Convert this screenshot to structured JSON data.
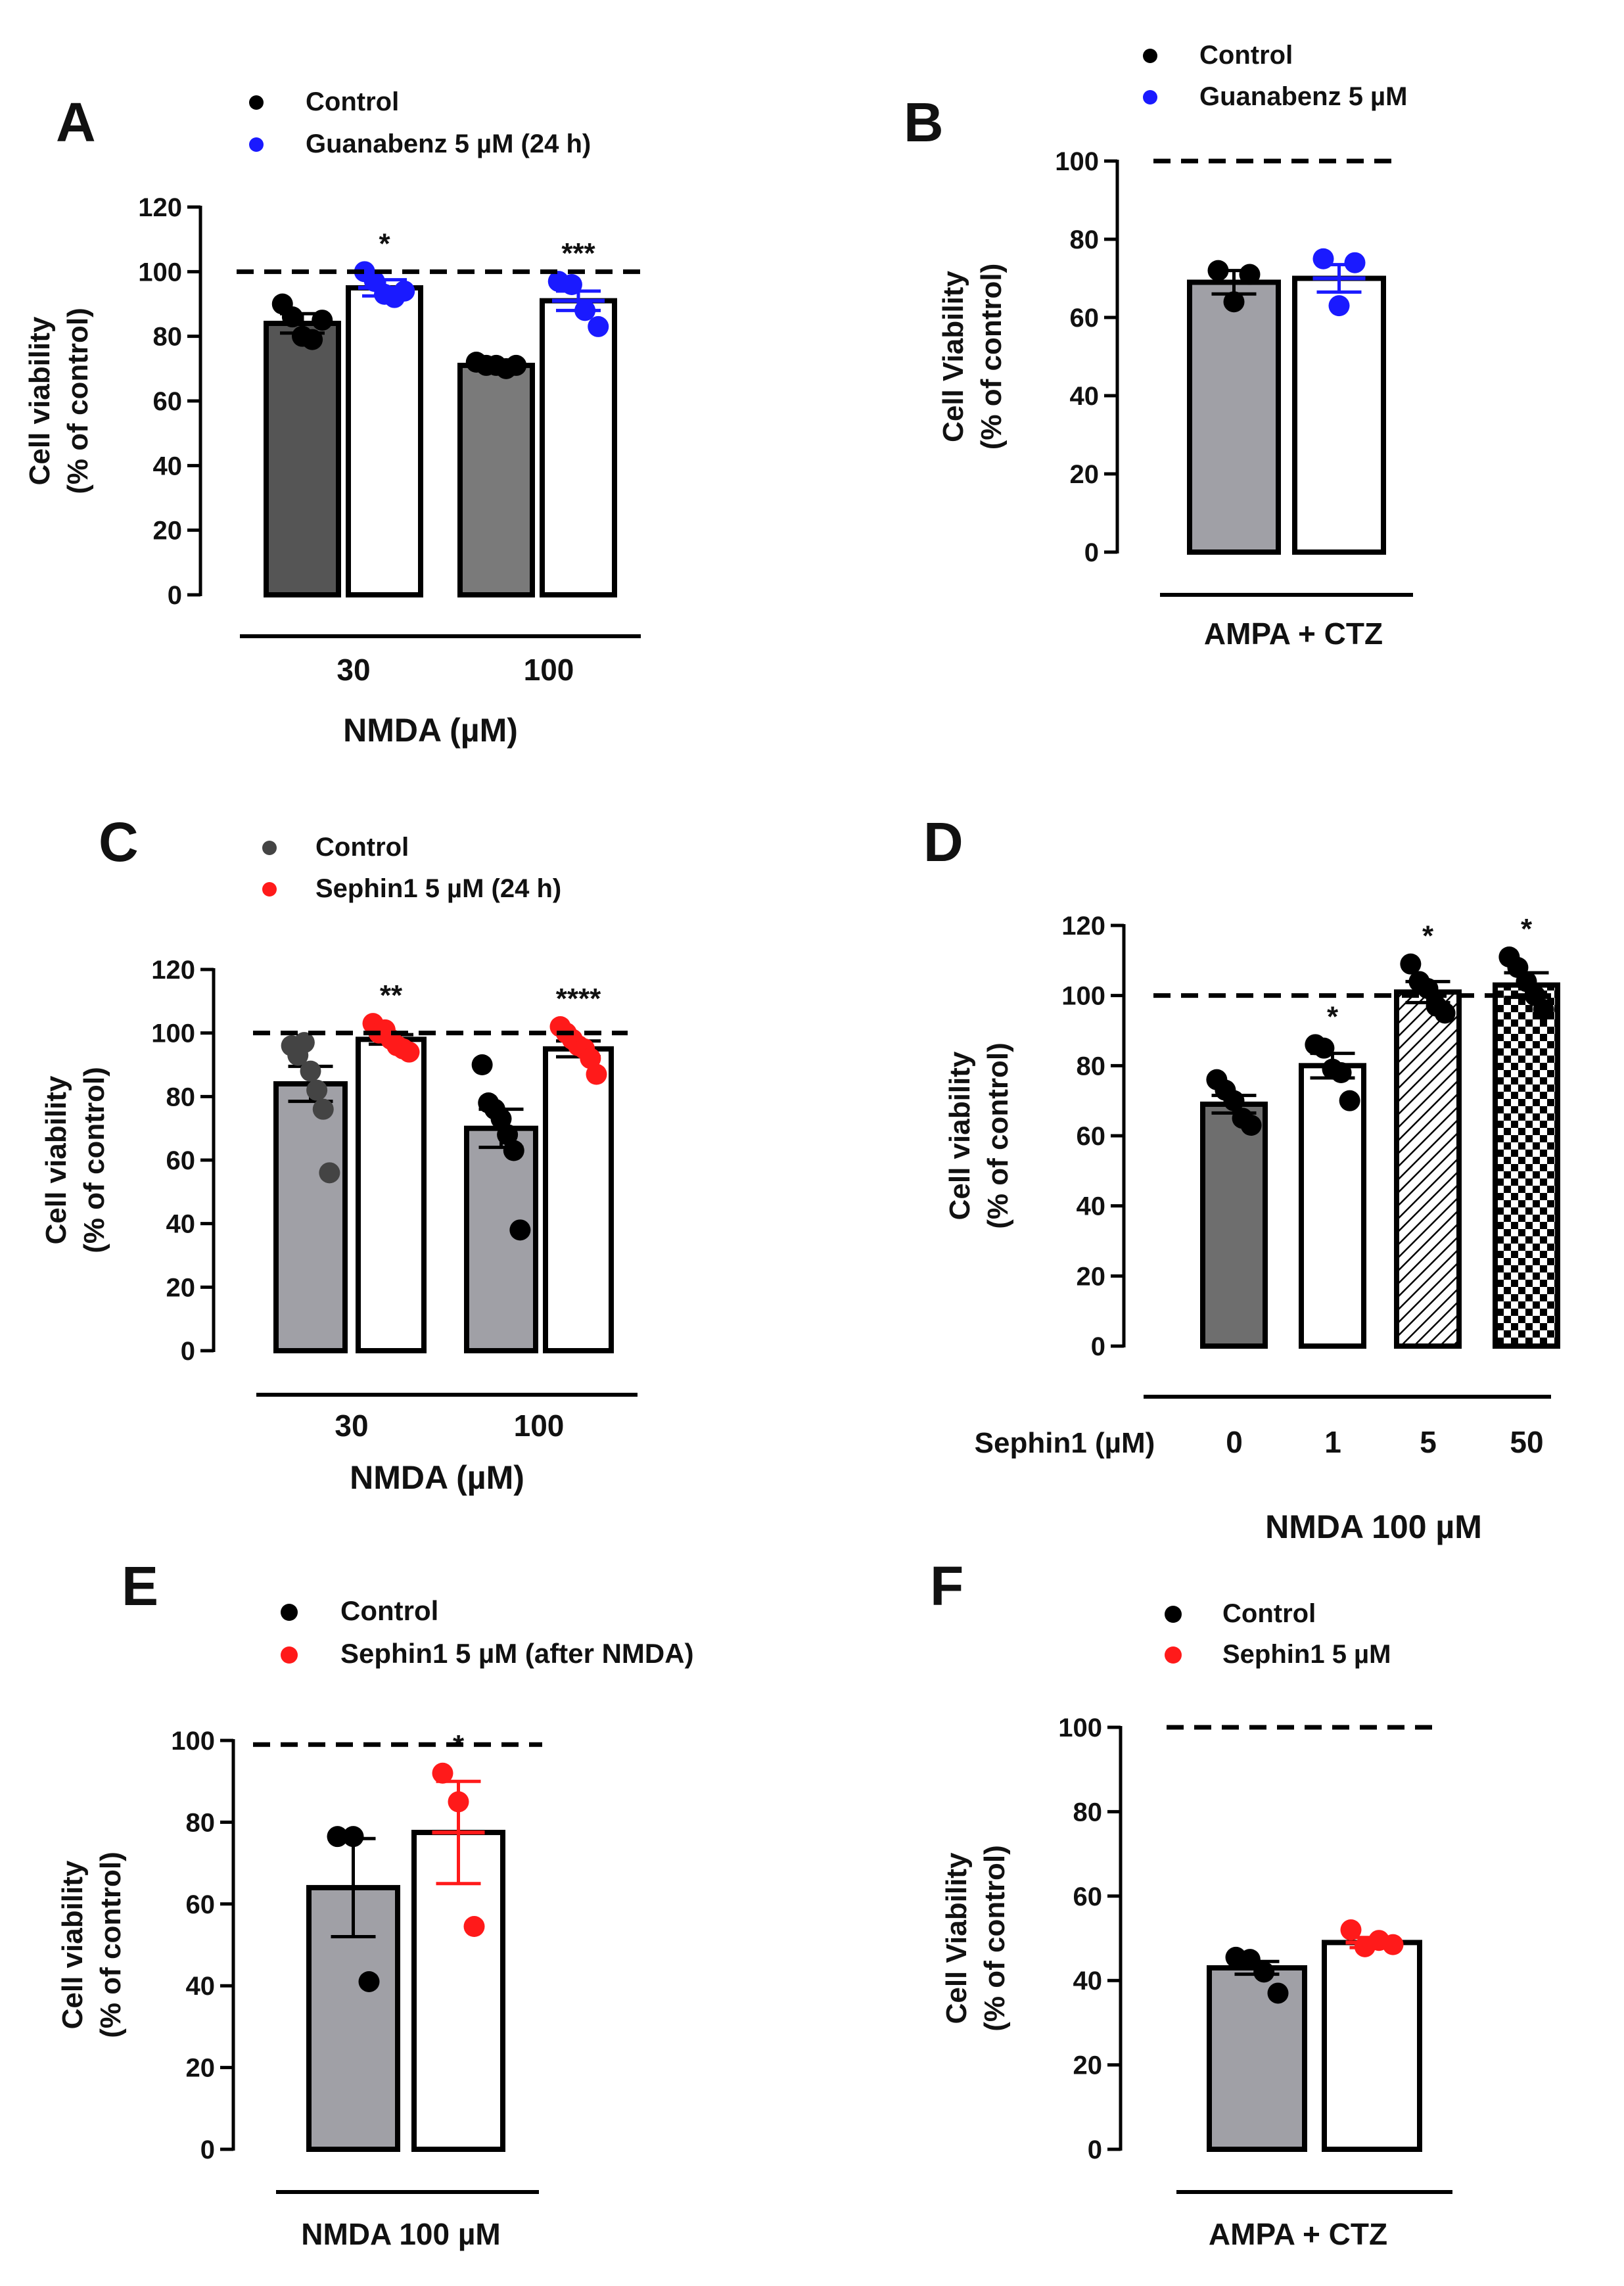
{
  "chart_data": [
    {
      "panel": "A",
      "type": "bar",
      "ylabel": [
        "Cell viability",
        "(% of control)"
      ],
      "ylim": [
        0,
        120
      ],
      "yticks": [
        0,
        20,
        40,
        60,
        80,
        100,
        120
      ],
      "reference_line": 100,
      "legend": [
        {
          "label": "Control",
          "color": "#000000"
        },
        {
          "label": "Guanabenz 5 µM (24 h)",
          "color": "#1a1aff"
        }
      ],
      "group_labels": [
        "30",
        "100"
      ],
      "xlabel": "NMDA (µM)",
      "bars": [
        {
          "group": 0,
          "series": "Control",
          "value": 84,
          "sem": 3,
          "fill": "#555555",
          "pattern": "solid",
          "err_color": "#000000",
          "point_color": "#000000",
          "points": [
            90,
            86,
            80,
            79,
            85
          ],
          "sig": ""
        },
        {
          "group": 0,
          "series": "Guanabenz 5 µM (24 h)",
          "value": 95,
          "sem": 2.5,
          "fill": "#ffffff",
          "pattern": "solid",
          "err_color": "#1a1aff",
          "point_color": "#1a1aff",
          "points": [
            100,
            97,
            93,
            92,
            94
          ],
          "sig": "*"
        },
        {
          "group": 1,
          "series": "Control",
          "value": 71,
          "sem": 0.6,
          "fill": "#7a7a7a",
          "pattern": "solid",
          "err_color": "#000000",
          "point_color": "#000000",
          "points": [
            72,
            71,
            71,
            70,
            71
          ],
          "sig": ""
        },
        {
          "group": 1,
          "series": "Guanabenz 5 µM (24 h)",
          "value": 91,
          "sem": 3,
          "fill": "#ffffff",
          "pattern": "solid",
          "err_color": "#1a1aff",
          "point_color": "#1a1aff",
          "points": [
            97,
            96,
            88,
            83
          ],
          "sig": "***"
        }
      ]
    },
    {
      "panel": "B",
      "type": "bar",
      "ylabel": [
        "Cell Viability",
        "(% of control)"
      ],
      "ylim": [
        0,
        100
      ],
      "yticks": [
        0,
        20,
        40,
        60,
        80,
        100
      ],
      "reference_line": 100,
      "legend": [
        {
          "label": "Control",
          "color": "#000000"
        },
        {
          "label": "Guanabenz 5 µM",
          "color": "#1a1aff"
        }
      ],
      "group_labels": [
        "AMPA + CTZ"
      ],
      "xlabel": "",
      "bars": [
        {
          "group": 0,
          "series": "Control",
          "value": 69,
          "sem": 3,
          "fill": "#a0a0a6",
          "pattern": "solid",
          "err_color": "#000000",
          "point_color": "#000000",
          "points": [
            72,
            64,
            71
          ],
          "sig": ""
        },
        {
          "group": 0,
          "series": "Guanabenz 5 µM",
          "value": 70,
          "sem": 3.5,
          "fill": "#ffffff",
          "pattern": "solid",
          "err_color": "#1a1aff",
          "point_color": "#1a1aff",
          "points": [
            75,
            63,
            74
          ],
          "sig": ""
        }
      ]
    },
    {
      "panel": "C",
      "type": "bar",
      "ylabel": [
        "Cell viability",
        "(% of control)"
      ],
      "ylim": [
        0,
        120
      ],
      "yticks": [
        0,
        20,
        40,
        60,
        80,
        100,
        120
      ],
      "reference_line": 100,
      "legend": [
        {
          "label": "Control",
          "color": "#444444"
        },
        {
          "label": "Sephin1 5 µM (24 h)",
          "color": "#ff1a1a"
        }
      ],
      "group_labels": [
        "30",
        "100"
      ],
      "xlabel": "NMDA (µM)",
      "bars": [
        {
          "group": 0,
          "series": "Control",
          "value": 84,
          "sem": 5.5,
          "fill": "#a0a0a6",
          "pattern": "solid",
          "err_color": "#000000",
          "point_color": "#444444",
          "points": [
            96,
            93,
            97,
            88,
            82,
            76,
            56
          ],
          "sig": ""
        },
        {
          "group": 0,
          "series": "Sephin1 5 µM (24 h)",
          "value": 98,
          "sem": 1.5,
          "fill": "#ffffff",
          "pattern": "solid",
          "err_color": "#000000",
          "point_color": "#ff1a1a",
          "points": [
            103,
            100,
            101,
            98,
            96,
            95,
            94
          ],
          "sig": "**"
        },
        {
          "group": 1,
          "series": "Control",
          "value": 70,
          "sem": 6,
          "fill": "#a0a0a6",
          "pattern": "solid",
          "err_color": "#000000",
          "point_color": "#000000",
          "points": [
            90,
            78,
            76,
            73,
            68,
            63,
            38
          ],
          "sig": ""
        },
        {
          "group": 1,
          "series": "Sephin1 5 µM (24 h)",
          "value": 95,
          "sem": 2.5,
          "fill": "#ffffff",
          "pattern": "solid",
          "err_color": "#000000",
          "point_color": "#ff1a1a",
          "points": [
            102,
            100,
            98,
            96,
            95,
            92,
            87
          ],
          "sig": "****"
        }
      ]
    },
    {
      "panel": "D",
      "type": "bar",
      "ylabel": [
        "Cell viability",
        "(% of control)"
      ],
      "ylim": [
        0,
        120
      ],
      "yticks": [
        0,
        20,
        40,
        60,
        80,
        100,
        120
      ],
      "reference_line": 100,
      "legend": [],
      "x_row_label": "Sephin1 (µM)",
      "group_labels": [
        "0",
        "1",
        "5",
        "50"
      ],
      "xlabel": "NMDA 100 µM",
      "bars": [
        {
          "group": 0,
          "series": "Sephin1 0 µM",
          "value": 69,
          "sem": 2.5,
          "fill": "#6e6e6e",
          "pattern": "solid",
          "err_color": "#000000",
          "point_color": "#000000",
          "points": [
            76,
            73,
            70,
            65,
            63
          ],
          "sig": ""
        },
        {
          "group": 1,
          "series": "Sephin1 1 µM",
          "value": 80,
          "sem": 3.5,
          "fill": "#ffffff",
          "pattern": "solid",
          "err_color": "#000000",
          "point_color": "#000000",
          "points": [
            86,
            85,
            79,
            78,
            70
          ],
          "sig": "*"
        },
        {
          "group": 2,
          "series": "Sephin1 5 µM",
          "value": 101,
          "sem": 3,
          "fill": "#ffffff",
          "pattern": "hatch",
          "err_color": "#000000",
          "point_color": "#000000",
          "points": [
            109,
            104,
            102,
            97,
            95
          ],
          "sig": "*"
        },
        {
          "group": 3,
          "series": "Sephin1 50 µM",
          "value": 103,
          "sem": 3.5,
          "fill": "#ffffff",
          "pattern": "checker",
          "err_color": "#000000",
          "point_color": "#000000",
          "points": [
            111,
            108,
            104,
            100,
            96
          ],
          "sig": "*"
        }
      ]
    },
    {
      "panel": "E",
      "type": "bar",
      "ylabel": [
        "Cell viability",
        "(% of control)"
      ],
      "ylim": [
        0,
        100
      ],
      "yticks": [
        0,
        20,
        40,
        60,
        80,
        100
      ],
      "reference_line": 99,
      "legend": [
        {
          "label": "Control",
          "color": "#000000"
        },
        {
          "label": "Sephin1 5 µM (after NMDA)",
          "color": "#ff1a1a"
        }
      ],
      "group_labels": [
        "NMDA 100 µM"
      ],
      "xlabel": "",
      "bars": [
        {
          "group": 0,
          "series": "Control",
          "value": 64,
          "sem": 12,
          "fill": "#a0a0a6",
          "pattern": "solid",
          "err_color": "#000000",
          "point_color": "#000000",
          "points": [
            76.5,
            76.5,
            41
          ],
          "sig": ""
        },
        {
          "group": 0,
          "series": "Sephin1 5 µM (after NMDA)",
          "value": 77.5,
          "sem": 12.5,
          "fill": "#ffffff",
          "pattern": "solid",
          "err_color": "#ff1a1a",
          "point_color": "#ff1a1a",
          "points": [
            92,
            85,
            54.5
          ],
          "sig": "*"
        }
      ]
    },
    {
      "panel": "F",
      "type": "bar",
      "ylabel": [
        "Cell Viability",
        "(% of control)"
      ],
      "ylim": [
        0,
        100
      ],
      "yticks": [
        0,
        20,
        40,
        60,
        80,
        100
      ],
      "reference_line": 100,
      "legend": [
        {
          "label": "Control",
          "color": "#000000"
        },
        {
          "label": "Sephin1 5 µM",
          "color": "#ff1a1a"
        }
      ],
      "group_labels": [
        "AMPA + CTZ"
      ],
      "xlabel": "",
      "bars": [
        {
          "group": 0,
          "series": "Control",
          "value": 43,
          "sem": 1.5,
          "fill": "#a0a0a6",
          "pattern": "solid",
          "err_color": "#000000",
          "point_color": "#000000",
          "points": [
            45.5,
            45,
            42,
            37
          ],
          "sig": ""
        },
        {
          "group": 0,
          "series": "Sephin1 5 µM",
          "value": 49,
          "sem": 1.2,
          "fill": "#ffffff",
          "pattern": "solid",
          "err_color": "#ff1a1a",
          "point_color": "#ff1a1a",
          "points": [
            52,
            48,
            49.5,
            48.5
          ],
          "sig": ""
        }
      ]
    }
  ]
}
